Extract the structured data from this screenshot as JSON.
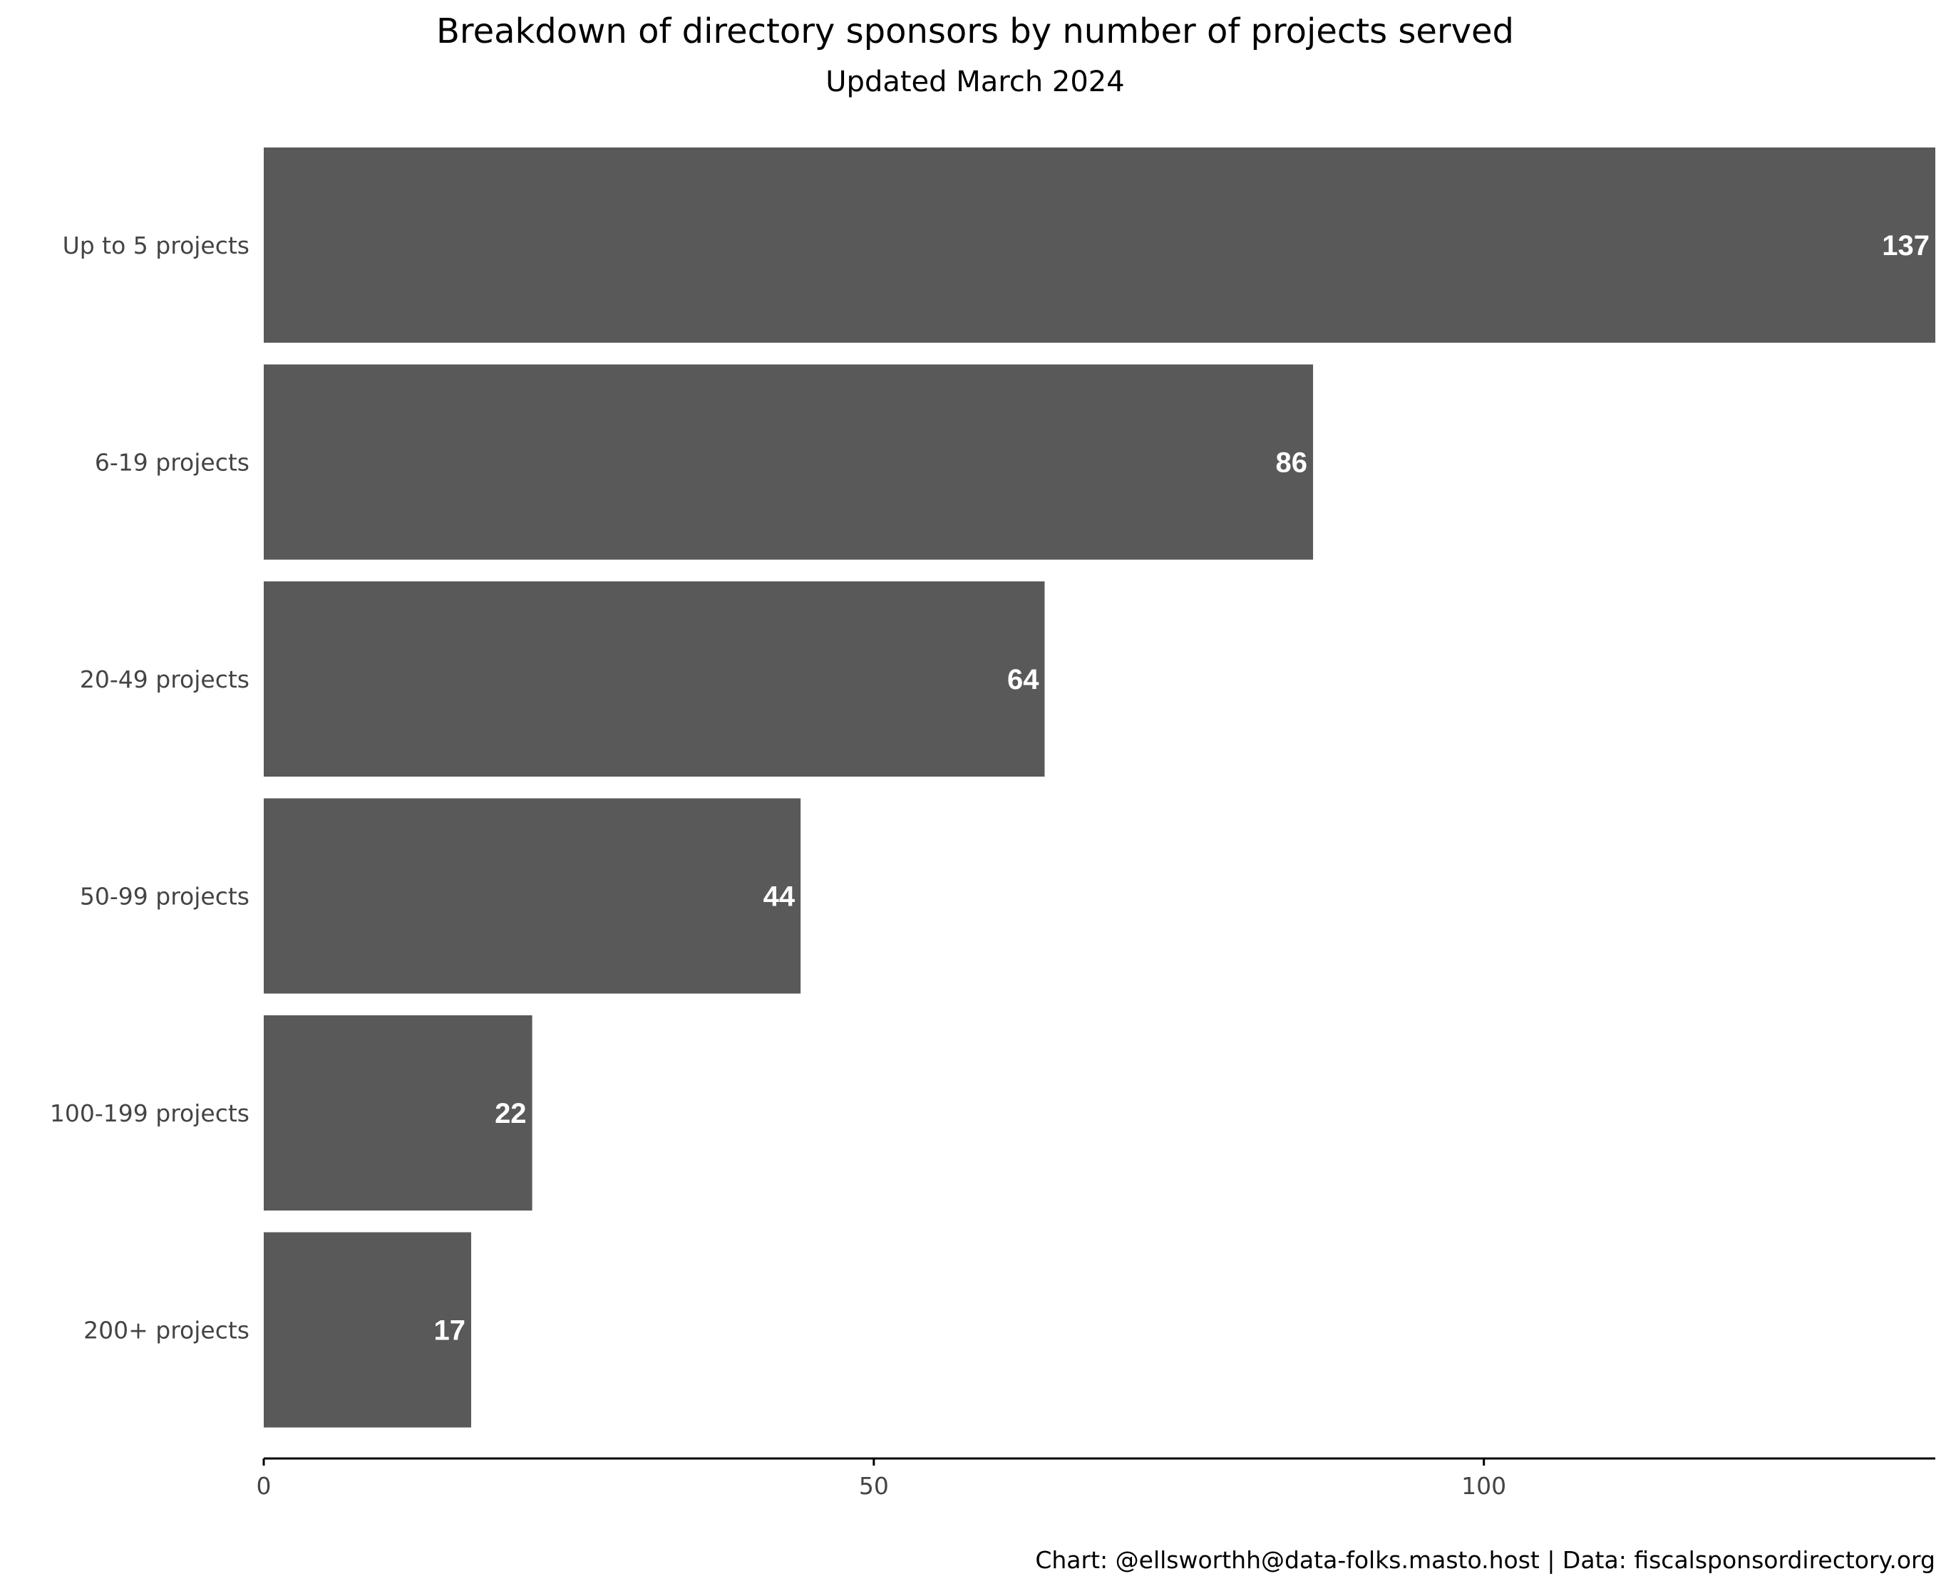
{
  "chart_data": {
    "type": "bar",
    "orientation": "horizontal",
    "title": "Breakdown of directory sponsors by number of projects served",
    "subtitle": "Updated March 2024",
    "caption": "Chart: @ellsworthh@data-folks.masto.host | Data: fiscalsponsordirectory.org",
    "categories": [
      "Up to 5 projects",
      "6-19 projects",
      "20-49 projects",
      "50-99 projects",
      "100-199 projects",
      "200+ projects"
    ],
    "values": [
      137,
      86,
      64,
      44,
      22,
      17
    ],
    "xlim": [
      0,
      137
    ],
    "xticks": [
      0,
      50,
      100
    ],
    "xtick_labels": [
      "0",
      "50",
      "100"
    ],
    "grid": false,
    "bar_color": "#595959",
    "value_label_color": "#ffffff",
    "axis_color": "#000000"
  }
}
